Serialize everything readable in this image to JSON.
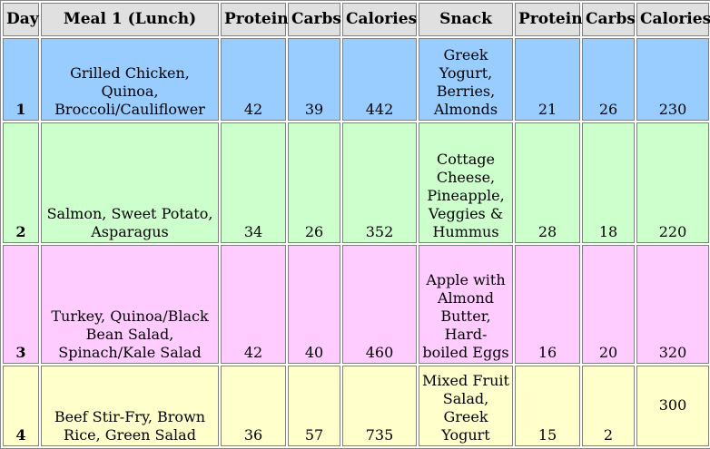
{
  "table": {
    "headers": [
      "Day",
      "Meal 1 (Lunch)",
      "Protein",
      "Carbs",
      "Calories",
      "Snack",
      "Protein",
      "Carbs",
      "Calories"
    ],
    "rows": [
      {
        "day": "1",
        "meal": "Grilled Chicken, Quinoa, Broccoli/Cauliflower",
        "meal_protein": "42",
        "meal_carbs": "39",
        "meal_calories": "442",
        "snack": "Greek Yogurt, Berries, Almonds",
        "snack_protein": "21",
        "snack_carbs": "26",
        "snack_calories": "230"
      },
      {
        "day": "2",
        "meal": "Salmon, Sweet Potato, Asparagus",
        "meal_protein": "34",
        "meal_carbs": "26",
        "meal_calories": "352",
        "snack": "Cottage Cheese, Pineapple, Veggies & Hummus",
        "snack_protein": "28",
        "snack_carbs": "18",
        "snack_calories": "220"
      },
      {
        "day": "3",
        "meal": "Turkey, Quinoa/Black Bean Salad, Spinach/Kale Salad",
        "meal_protein": "42",
        "meal_carbs": "40",
        "meal_calories": "460",
        "snack": "Apple with Almond Butter, Hard-boiled Eggs",
        "snack_protein": "16",
        "snack_carbs": "20",
        "snack_calories": "320"
      },
      {
        "day": "4",
        "meal": "Beef Stir-Fry, Brown Rice, Green Salad",
        "meal_protein": "36",
        "meal_carbs": "57",
        "meal_calories": "735",
        "snack": "Mixed Fruit Salad, Greek Yogurt",
        "snack_protein": "15",
        "snack_carbs": "2",
        "snack_calories": "300"
      }
    ]
  },
  "colors": {
    "header_bg": "#e0e0e0",
    "row_1": "#99ccff",
    "row_2": "#ccffcc",
    "row_3": "#ffccff",
    "row_4": "#ffffcc",
    "border": "#808080"
  }
}
